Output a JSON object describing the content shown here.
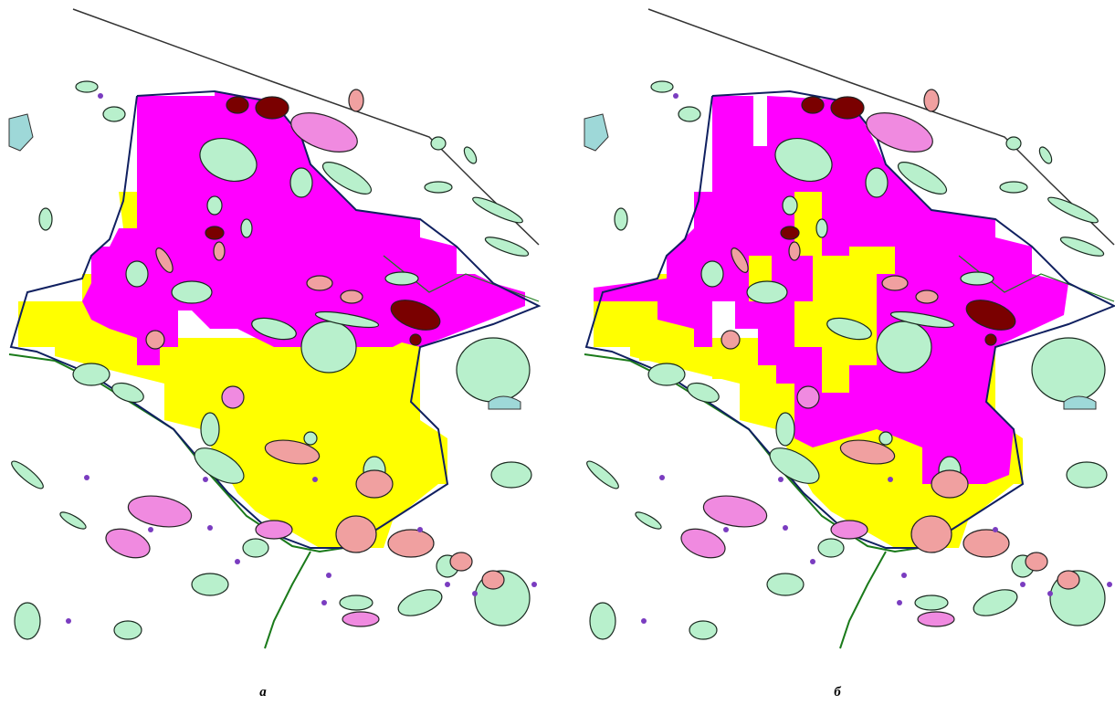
{
  "panels": [
    {
      "label": "а"
    },
    {
      "label": "б"
    }
  ]
}
